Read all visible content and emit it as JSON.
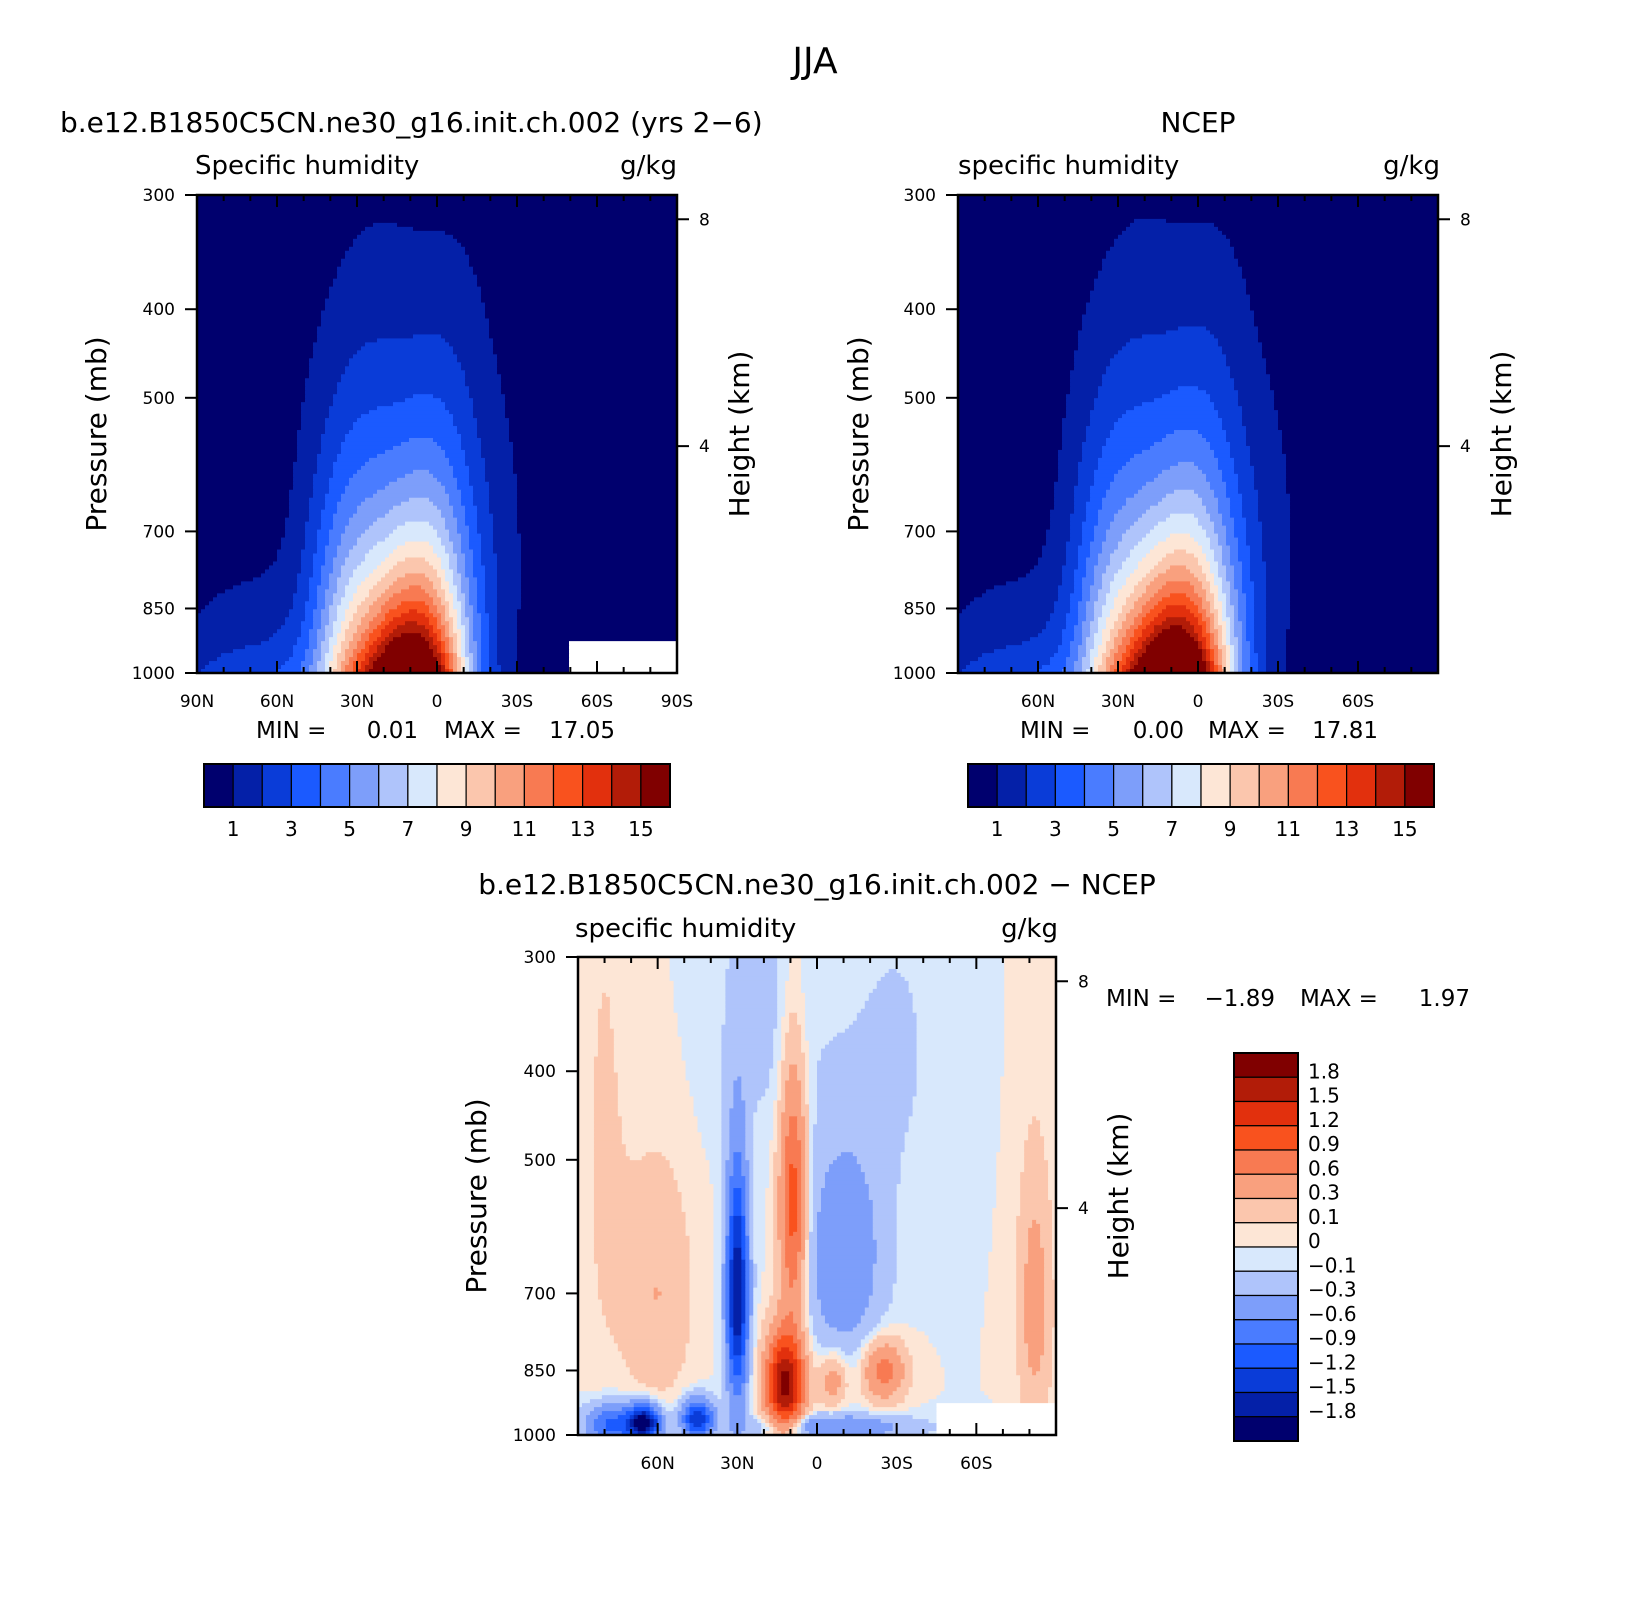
{
  "title": "JJA",
  "chart_data": [
    {
      "type": "heatmap",
      "case_title": "b.e12.B1850C5CN.ne30_g16.init.ch.002 (yrs 2−6)",
      "left_label": "Specific humidity",
      "right_label": "g/kg",
      "ylabel": "Pressure (mb)",
      "y2label": "Height (km)",
      "x_ticks": [
        "90N",
        "60N",
        "30N",
        "0",
        "30S",
        "60S",
        "90S"
      ],
      "y_ticks": [
        "300",
        "400",
        "500",
        "700",
        "850",
        "1000"
      ],
      "y2_ticks": [
        "8",
        "4"
      ],
      "min_label": "MIN =",
      "min_value": "0.01",
      "max_label": "MAX =",
      "max_value": "17.05",
      "lat_range": [
        90,
        -90
      ],
      "pressure_range": [
        300,
        1000
      ],
      "levels": [
        1,
        2,
        3,
        4,
        5,
        6,
        7,
        8,
        9,
        10,
        11,
        12,
        13,
        14,
        15,
        16
      ],
      "colorbar_labels": [
        "1",
        "3",
        "5",
        "7",
        "9",
        "11",
        "13",
        "15"
      ],
      "peak": {
        "lat": 10,
        "value": 17.05
      },
      "missing_region": {
        "lat_from": -50,
        "lat_to": -90,
        "pressure_from": 925,
        "pressure_to": 1000
      }
    },
    {
      "type": "heatmap",
      "case_title": "NCEP",
      "left_label": "specific humidity",
      "right_label": "g/kg",
      "ylabel": "Pressure (mb)",
      "y2label": "Height (km)",
      "x_ticks": [
        "60N",
        "30N",
        "0",
        "30S",
        "60S"
      ],
      "y_ticks": [
        "300",
        "400",
        "500",
        "700",
        "850",
        "1000"
      ],
      "y2_ticks": [
        "8",
        "4"
      ],
      "min_label": "MIN =",
      "min_value": "0.00",
      "max_label": "MAX =",
      "max_value": "17.81",
      "lat_range": [
        90,
        -90
      ],
      "pressure_range": [
        300,
        1000
      ],
      "levels": [
        1,
        2,
        3,
        4,
        5,
        6,
        7,
        8,
        9,
        10,
        11,
        12,
        13,
        14,
        15,
        16
      ],
      "colorbar_labels": [
        "1",
        "3",
        "5",
        "7",
        "9",
        "11",
        "13",
        "15"
      ],
      "peak": {
        "lat": 8,
        "value": 17.81
      }
    },
    {
      "type": "heatmap",
      "case_title": "b.e12.B1850C5CN.ne30_g16.init.ch.002 − NCEP",
      "left_label": "specific humidity",
      "right_label": "g/kg",
      "ylabel": "Pressure (mb)",
      "y2label": "Height (km)",
      "x_ticks": [
        "60N",
        "30N",
        "0",
        "30S",
        "60S"
      ],
      "y_ticks": [
        "300",
        "400",
        "500",
        "700",
        "850",
        "1000"
      ],
      "y2_ticks": [
        "8",
        "4"
      ],
      "min_label": "MIN =",
      "min_value": "−1.89",
      "max_label": "MAX =",
      "max_value": "1.97",
      "lat_range": [
        90,
        -90
      ],
      "pressure_range": [
        300,
        1000
      ],
      "levels": [
        -1.8,
        -1.5,
        -1.2,
        -0.9,
        -0.6,
        -0.3,
        -0.1,
        0,
        0.1,
        0.3,
        0.6,
        0.9,
        1.2,
        1.5,
        1.8
      ],
      "colorbar_labels": [
        "1.8",
        "1.5",
        "1.2",
        "0.9",
        "0.6",
        "0.3",
        "0.1",
        "0",
        "−0.1",
        "−0.3",
        "−0.6",
        "−0.9",
        "−1.2",
        "−1.5",
        "−1.8"
      ],
      "missing_region": {
        "lat_from": -45,
        "lat_to": -90,
        "pressure_from": 925,
        "pressure_to": 1000
      }
    }
  ],
  "colors": {
    "sequential": [
      "#00006e",
      "#0420a8",
      "#0a3cd8",
      "#1b5aff",
      "#4a7cff",
      "#7d9efa",
      "#afc4fb",
      "#d8e8fc",
      "#fde6d6",
      "#fbc6ad",
      "#f9a07e",
      "#f87a52",
      "#f9521e",
      "#e2300d",
      "#b21c08",
      "#800000"
    ],
    "diverging": [
      "#00006e",
      "#0420a8",
      "#0a3cd8",
      "#1b5aff",
      "#4a7cff",
      "#7d9efa",
      "#afc4fb",
      "#d8e8fc",
      "#fde6d6",
      "#fbc6ad",
      "#f9a07e",
      "#f87a52",
      "#f9521e",
      "#e2300d",
      "#b21c08",
      "#800000"
    ]
  }
}
